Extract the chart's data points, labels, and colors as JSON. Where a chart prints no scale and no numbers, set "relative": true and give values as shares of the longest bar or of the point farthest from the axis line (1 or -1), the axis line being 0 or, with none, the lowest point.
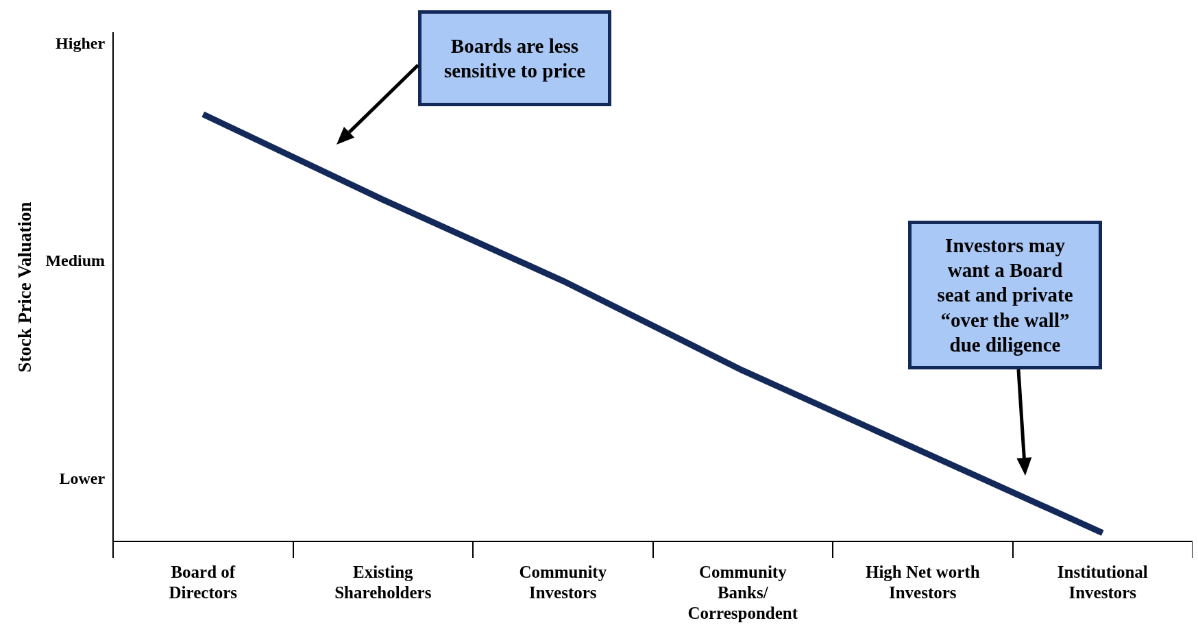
{
  "chart_data": {
    "type": "line",
    "relative": true,
    "ylabel": "Stock Price Valuation",
    "categories": [
      "Board of Directors",
      "Existing Shareholders",
      "Community Investors",
      "Community Banks/ Correspondent",
      "High Net worth Investors",
      "Institutional Investors"
    ],
    "series": [
      {
        "color": "#13295a",
        "values": [
          1,
          0.8,
          0.61,
          0.4,
          0.21,
          0.02
        ]
      }
    ],
    "annotations": [
      "Higher",
      "Medium",
      "Lower",
      "Boards are less sensitive to price",
      "Investors may want a Board seat and private “over the wall” due diligence"
    ],
    "grid": false,
    "legend": false,
    "marker": "none",
    "line_style": "solid"
  }
}
